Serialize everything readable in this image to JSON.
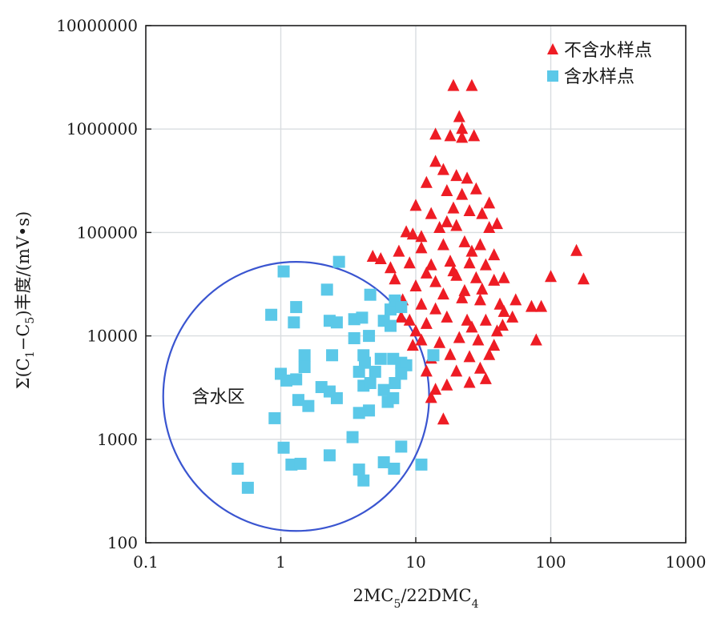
{
  "chart_data": {
    "type": "scatter",
    "xscale": "log",
    "yscale": "log",
    "xlim": [
      0.1,
      1000
    ],
    "ylim": [
      100,
      10000000
    ],
    "grid": true,
    "legend_position": "top-right",
    "xlabel_parts": [
      {
        "text": "2MC",
        "sub": false
      },
      {
        "text": "5",
        "sub": true
      },
      {
        "text": "/22DMC",
        "sub": false
      },
      {
        "text": "4",
        "sub": true
      }
    ],
    "ylabel_parts": [
      {
        "text": "Σ(C",
        "sub": false
      },
      {
        "text": "1",
        "sub": true
      },
      {
        "text": "−C",
        "sub": false
      },
      {
        "text": "5",
        "sub": true
      },
      {
        "text": ")丰度/(mV•s)",
        "sub": false
      }
    ],
    "x_ticks": [
      {
        "value": 0.1,
        "label": "0.1"
      },
      {
        "value": 1,
        "label": "1"
      },
      {
        "value": 10,
        "label": "10"
      },
      {
        "value": 100,
        "label": "100"
      },
      {
        "value": 1000,
        "label": "1000"
      }
    ],
    "y_ticks": [
      {
        "value": 100,
        "label": "100"
      },
      {
        "value": 1000,
        "label": "1000"
      },
      {
        "value": 10000,
        "label": "10000"
      },
      {
        "value": 100000,
        "label": "100000"
      },
      {
        "value": 1000000,
        "label": "1000000"
      },
      {
        "value": 10000000,
        "label": "10000000"
      }
    ],
    "series": [
      {
        "name": "不含水样点",
        "marker": "triangle",
        "color": "#ee1c24",
        "points": [
          [
            19,
            2600000
          ],
          [
            26,
            2600000
          ],
          [
            21,
            1300000
          ],
          [
            22,
            1000000
          ],
          [
            14,
            880000
          ],
          [
            18,
            850000
          ],
          [
            22,
            820000
          ],
          [
            27,
            850000
          ],
          [
            14,
            480000
          ],
          [
            16,
            400000
          ],
          [
            20,
            350000
          ],
          [
            24,
            330000
          ],
          [
            12,
            300000
          ],
          [
            17,
            250000
          ],
          [
            28,
            260000
          ],
          [
            22,
            230000
          ],
          [
            10,
            180000
          ],
          [
            13,
            150000
          ],
          [
            19,
            170000
          ],
          [
            25,
            160000
          ],
          [
            31,
            150000
          ],
          [
            9.5,
            95000
          ],
          [
            8.5,
            100000
          ],
          [
            11,
            90000
          ],
          [
            15,
            110000
          ],
          [
            20,
            115000
          ],
          [
            35,
            110000
          ],
          [
            40,
            120000
          ],
          [
            7.5,
            65000
          ],
          [
            11,
            70000
          ],
          [
            16,
            75000
          ],
          [
            23,
            80000
          ],
          [
            30,
            75000
          ],
          [
            5.5,
            55000
          ],
          [
            4.8,
            58000
          ],
          [
            6.5,
            45000
          ],
          [
            9,
            50000
          ],
          [
            13,
            48000
          ],
          [
            18,
            52000
          ],
          [
            25,
            50000
          ],
          [
            33,
            48000
          ],
          [
            38,
            60000
          ],
          [
            7,
            35000
          ],
          [
            10,
            30000
          ],
          [
            14,
            33000
          ],
          [
            20,
            38000
          ],
          [
            28,
            36000
          ],
          [
            38,
            34000
          ],
          [
            45,
            36000
          ],
          [
            100,
            37000
          ],
          [
            155,
            66000
          ],
          [
            175,
            35000
          ],
          [
            8,
            22000
          ],
          [
            11,
            20000
          ],
          [
            16,
            25000
          ],
          [
            22,
            23000
          ],
          [
            30,
            22000
          ],
          [
            42,
            20000
          ],
          [
            55,
            22000
          ],
          [
            72,
            19000
          ],
          [
            85,
            19000
          ],
          [
            9,
            14000
          ],
          [
            12,
            13000
          ],
          [
            17,
            15000
          ],
          [
            24,
            14000
          ],
          [
            33,
            14000
          ],
          [
            44,
            12500
          ],
          [
            11,
            9000
          ],
          [
            15,
            8500
          ],
          [
            21,
            9500
          ],
          [
            29,
            9000
          ],
          [
            38,
            8000
          ],
          [
            78,
            9000
          ],
          [
            13,
            6000
          ],
          [
            18,
            6500
          ],
          [
            25,
            6200
          ],
          [
            35,
            6500
          ],
          [
            12,
            4500
          ],
          [
            20,
            4500
          ],
          [
            30,
            4800
          ],
          [
            14,
            3000
          ],
          [
            17,
            3300
          ],
          [
            25,
            3500
          ],
          [
            13,
            2500
          ],
          [
            16,
            1550
          ],
          [
            45,
            17000
          ],
          [
            40,
            11000
          ],
          [
            52,
            15000
          ],
          [
            26,
            12000
          ],
          [
            14,
            18000
          ],
          [
            10,
            11000
          ],
          [
            7.8,
            15000
          ],
          [
            23,
            27000
          ],
          [
            31,
            28000
          ],
          [
            19,
            42000
          ],
          [
            12,
            40000
          ],
          [
            26,
            65000
          ],
          [
            9.5,
            8000
          ],
          [
            33,
            3800
          ],
          [
            17,
            125000
          ],
          [
            35,
            190000
          ]
        ]
      },
      {
        "name": "含水样点",
        "marker": "square",
        "color": "#5bc8e8",
        "points": [
          [
            1.05,
            42000
          ],
          [
            2.7,
            52000
          ],
          [
            2.2,
            28000
          ],
          [
            1.3,
            19000
          ],
          [
            0.85,
            16000
          ],
          [
            1.25,
            13500
          ],
          [
            2.3,
            14000
          ],
          [
            2.6,
            13500
          ],
          [
            3.5,
            14500
          ],
          [
            4,
            15000
          ],
          [
            4.6,
            25000
          ],
          [
            5.8,
            14000
          ],
          [
            6.5,
            18000
          ],
          [
            7,
            22000
          ],
          [
            7.8,
            19000
          ],
          [
            6.5,
            12500
          ],
          [
            3.5,
            9500
          ],
          [
            4.5,
            10000
          ],
          [
            2.4,
            6500
          ],
          [
            4.1,
            6500
          ],
          [
            5.5,
            6000
          ],
          [
            4.2,
            5500
          ],
          [
            1.5,
            6500
          ],
          [
            1.5,
            5000
          ],
          [
            3.8,
            4500
          ],
          [
            5,
            4500
          ],
          [
            6.8,
            6000
          ],
          [
            7.8,
            5500
          ],
          [
            8.5,
            5200
          ],
          [
            1,
            4300
          ],
          [
            1.1,
            3700
          ],
          [
            1.3,
            3800
          ],
          [
            2,
            3200
          ],
          [
            2.3,
            2900
          ],
          [
            4.1,
            3300
          ],
          [
            4.6,
            3500
          ],
          [
            5.8,
            3000
          ],
          [
            7,
            3500
          ],
          [
            7.8,
            4300
          ],
          [
            1.35,
            2400
          ],
          [
            1.6,
            2100
          ],
          [
            2.6,
            2500
          ],
          [
            4.5,
            1900
          ],
          [
            3.8,
            1800
          ],
          [
            6.2,
            2300
          ],
          [
            6.8,
            2500
          ],
          [
            0.9,
            1600
          ],
          [
            3.4,
            1050
          ],
          [
            1.05,
            830
          ],
          [
            2.3,
            700
          ],
          [
            7.8,
            850
          ],
          [
            0.48,
            520
          ],
          [
            1.2,
            570
          ],
          [
            1.4,
            580
          ],
          [
            3.8,
            510
          ],
          [
            5.8,
            600
          ],
          [
            6.9,
            520
          ],
          [
            11,
            570
          ],
          [
            4.1,
            400
          ],
          [
            0.57,
            340
          ],
          [
            13.5,
            6500
          ]
        ]
      }
    ],
    "annotations": [
      {
        "type": "ellipse",
        "label": "含水区",
        "center": [
          1.3,
          2600
        ],
        "x_range": [
          0.15,
          14
        ],
        "y_range": [
          125,
          50000
        ]
      }
    ]
  }
}
